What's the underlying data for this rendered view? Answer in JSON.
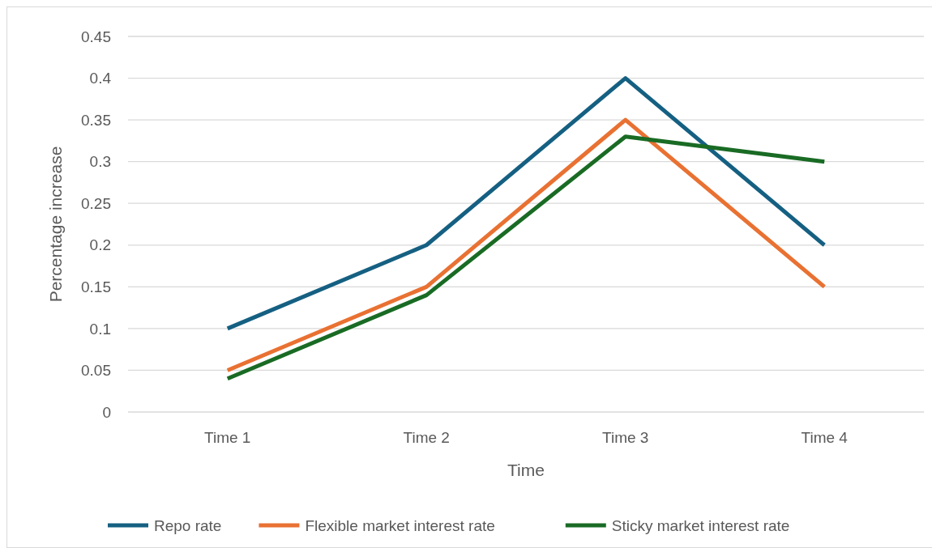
{
  "chart_data": {
    "type": "line",
    "xlabel": "Time",
    "ylabel": "Percentage increase",
    "categories": [
      "Time 1",
      "Time 2",
      "Time 3",
      "Time 4"
    ],
    "series": [
      {
        "name": "Repo rate",
        "color": "#156082",
        "values": [
          0.1,
          0.2,
          0.4,
          0.2
        ]
      },
      {
        "name": "Flexible market interest rate",
        "color": "#e97132",
        "values": [
          0.05,
          0.15,
          0.35,
          0.15
        ]
      },
      {
        "name": "Sticky market interest rate",
        "color": "#196b24",
        "values": [
          0.04,
          0.14,
          0.33,
          0.3
        ]
      }
    ],
    "ylim": [
      0,
      0.45
    ],
    "yticks": [
      0,
      0.05,
      0.1,
      0.15,
      0.2,
      0.25,
      0.3,
      0.35,
      0.4,
      0.45
    ],
    "grid": "y",
    "legend": "bottom",
    "marker": "none",
    "line_style": "solid"
  }
}
